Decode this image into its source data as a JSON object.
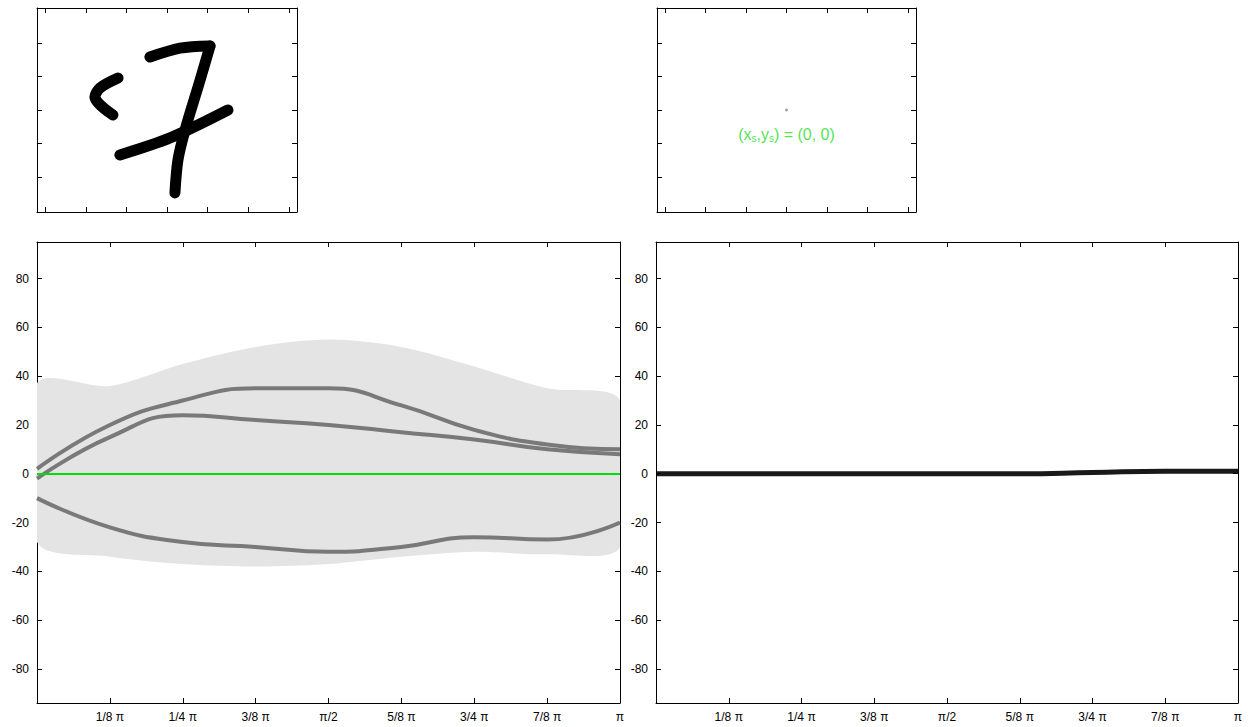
{
  "chart_data": [
    {
      "type": "image_strokes",
      "xlim": [
        -64,
        64
      ],
      "ylim": [
        -61,
        61
      ],
      "xticks": [
        -60,
        -40,
        -20,
        0,
        20,
        40,
        60
      ],
      "yticks": [
        -40,
        -20,
        0,
        20,
        40
      ],
      "tick_labels": false,
      "color": "#000000",
      "strokes": [
        {
          "x": [
            -8.4,
            6.4,
            21.2
          ],
          "values": [
            31.7,
            37,
            38.3
          ]
        },
        {
          "x": [
            21.2,
            16.3,
            8.9,
            5.4,
            3.9
          ],
          "values": [
            38.3,
            17.9,
            -12,
            -29.9,
            -49.6
          ]
        },
        {
          "x": [
            -23.2,
            1.5,
            30
          ],
          "values": [
            -26.9,
            -16.7,
            0
          ]
        },
        {
          "x": [
            -26.6,
            -35.5,
            -33,
            -24.1
          ],
          "values": [
            -3,
            7.8,
            13.2,
            19.1
          ]
        }
      ]
    },
    {
      "type": "point_image",
      "xlim": [
        -64,
        64
      ],
      "ylim": [
        -61,
        61
      ],
      "xticks": [
        -60,
        -40,
        -20,
        0,
        20,
        40,
        60
      ],
      "yticks": [
        -40,
        -20,
        0,
        20,
        40
      ],
      "tick_labels": false,
      "color": "#888888",
      "points": {
        "x": [
          0
        ],
        "values": [
          0
        ]
      },
      "annotation": {
        "text": "(xs,ys) = (0, 0)",
        "color": "#22dd22"
      }
    },
    {
      "type": "sinogram",
      "xlim": [
        0,
        3.1416
      ],
      "ylim": [
        -94,
        95
      ],
      "xticks": [
        {
          "value": 0.3927,
          "label": "1/8 π"
        },
        {
          "value": 0.7854,
          "label": "1/4 π"
        },
        {
          "value": 1.1781,
          "label": "3/8 π"
        },
        {
          "value": 1.5708,
          "label": "π/2"
        },
        {
          "value": 1.9635,
          "label": "5/8 π"
        },
        {
          "value": 2.3562,
          "label": "3/4 π"
        },
        {
          "value": 2.7489,
          "label": "7/8 π"
        },
        {
          "value": 3.1416,
          "label": "π"
        }
      ],
      "yticks": [
        -80,
        -60,
        -40,
        -20,
        0,
        20,
        40,
        60,
        80
      ],
      "color": "#555555",
      "band": {
        "x": [
          0,
          0.3927,
          0.7854,
          1.1781,
          1.5708,
          1.9635,
          2.3562,
          2.7489,
          3.1416
        ],
        "lower": [
          -28,
          -34,
          -37,
          -38,
          -37,
          -34,
          -32,
          -33,
          -30
        ],
        "upper": [
          37,
          36,
          45,
          52,
          55,
          52,
          44,
          35,
          30
        ]
      },
      "series": [
        {
          "x": [
            0,
            0.3927,
            0.7854,
            1.1781,
            1.5708,
            1.9635,
            2.3562,
            2.7489,
            3.1416
          ],
          "values": [
            -2,
            15,
            24,
            22,
            20,
            17,
            14,
            10,
            8
          ]
        },
        {
          "x": [
            0,
            0.3927,
            0.7854,
            1.1781,
            1.5708,
            1.9635,
            2.3562,
            2.7489,
            3.1416
          ],
          "values": [
            2,
            20,
            30,
            35,
            35,
            28,
            18,
            12,
            10
          ]
        },
        {
          "x": [
            0,
            0.3927,
            0.7854,
            1.1781,
            1.5708,
            1.9635,
            2.3562,
            2.7489,
            3.1416
          ],
          "values": [
            -10,
            -22,
            -28,
            -30,
            -32,
            -30,
            -26,
            -27,
            -20
          ]
        }
      ],
      "reference_line": {
        "value": 0,
        "color": "#00dd00"
      }
    },
    {
      "type": "sinogram",
      "xlim": [
        0,
        3.1416
      ],
      "ylim": [
        -94,
        95
      ],
      "xticks": [
        {
          "value": 0.3927,
          "label": "1/8 π"
        },
        {
          "value": 0.7854,
          "label": "1/4 π"
        },
        {
          "value": 1.1781,
          "label": "3/8 π"
        },
        {
          "value": 1.5708,
          "label": "π/2"
        },
        {
          "value": 1.9635,
          "label": "5/8 π"
        },
        {
          "value": 2.3562,
          "label": "3/4 π"
        },
        {
          "value": 2.7489,
          "label": "7/8 π"
        },
        {
          "value": 3.1416,
          "label": "π"
        }
      ],
      "yticks": [
        -80,
        -60,
        -40,
        -20,
        0,
        20,
        40,
        60,
        80
      ],
      "color": "#000000",
      "series": [
        {
          "x": [
            0,
            0.3927,
            0.7854,
            1.1781,
            1.5708,
            1.9635,
            2.3562,
            2.7489,
            3.1416
          ],
          "values": [
            0,
            0,
            0,
            0,
            0,
            0,
            0.5,
            1,
            1
          ]
        }
      ]
    }
  ]
}
